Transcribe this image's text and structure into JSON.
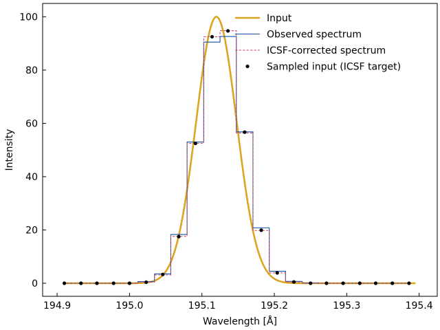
{
  "chart_data": {
    "type": "line",
    "xlabel": "Wavelength [Å]",
    "ylabel": "Intensity",
    "xlim": [
      194.88,
      195.425
    ],
    "ylim": [
      -4.9,
      105
    ],
    "x_ticks": [
      194.9,
      195.0,
      195.1,
      195.2,
      195.3,
      195.4
    ],
    "x_tick_labels": [
      "194.9",
      "195.0",
      "195.1",
      "195.2",
      "195.3",
      "195.4"
    ],
    "y_ticks": [
      0,
      20,
      40,
      60,
      80,
      100
    ],
    "y_tick_labels": [
      "0",
      "20",
      "40",
      "60",
      "80",
      "100"
    ],
    "grid": false,
    "legend_position": "top-right",
    "bin_width": 0.0226,
    "series": [
      {
        "name": "Input",
        "style": "line",
        "color": "#DAA520",
        "model": "gaussian",
        "peak": 100,
        "center": 195.12,
        "sigma": 0.028,
        "x_range": [
          194.91,
          195.395
        ]
      },
      {
        "name": "Observed spectrum",
        "style": "steps-mid",
        "color": "#0F4FA8",
        "x": [
          194.91,
          194.933,
          194.955,
          194.978,
          195.0,
          195.023,
          195.046,
          195.068,
          195.091,
          195.114,
          195.136,
          195.159,
          195.182,
          195.204,
          195.227,
          195.25,
          195.272,
          195.295,
          195.318,
          195.34,
          195.363,
          195.386
        ],
        "y": [
          0,
          0,
          0,
          0,
          0,
          0.6,
          3.5,
          18.3,
          53.0,
          90.5,
          92.6,
          56.8,
          20.8,
          4.5,
          0.7,
          0.1,
          0,
          0,
          0,
          0,
          0,
          0
        ]
      },
      {
        "name": "ICSF-corrected spectrum",
        "style": "steps-mid-dashed",
        "color": "#D24D6A",
        "x": [
          194.91,
          194.933,
          194.955,
          194.978,
          195.0,
          195.023,
          195.046,
          195.068,
          195.091,
          195.114,
          195.136,
          195.159,
          195.182,
          195.204,
          195.227,
          195.25,
          195.272,
          195.295,
          195.318,
          195.34,
          195.363,
          195.386
        ],
        "y": [
          0,
          0,
          0,
          0,
          0,
          0.4,
          3.1,
          17.6,
          52.5,
          92.5,
          94.8,
          56.4,
          19.8,
          3.9,
          0.5,
          0,
          0,
          0,
          0,
          0,
          0,
          0
        ]
      },
      {
        "name": "Sampled input (ICSF target)",
        "style": "points",
        "color": "#000000",
        "x": [
          194.91,
          194.933,
          194.955,
          194.978,
          195.0,
          195.023,
          195.046,
          195.068,
          195.091,
          195.114,
          195.136,
          195.159,
          195.182,
          195.204,
          195.227,
          195.25,
          195.272,
          195.295,
          195.318,
          195.34,
          195.363,
          195.386
        ],
        "y": [
          0,
          0,
          0,
          0,
          0,
          0.4,
          3.3,
          17.5,
          52.5,
          92.5,
          94.7,
          56.7,
          19.9,
          3.9,
          0.5,
          0,
          0,
          0,
          0,
          0,
          0,
          0
        ]
      }
    ]
  }
}
